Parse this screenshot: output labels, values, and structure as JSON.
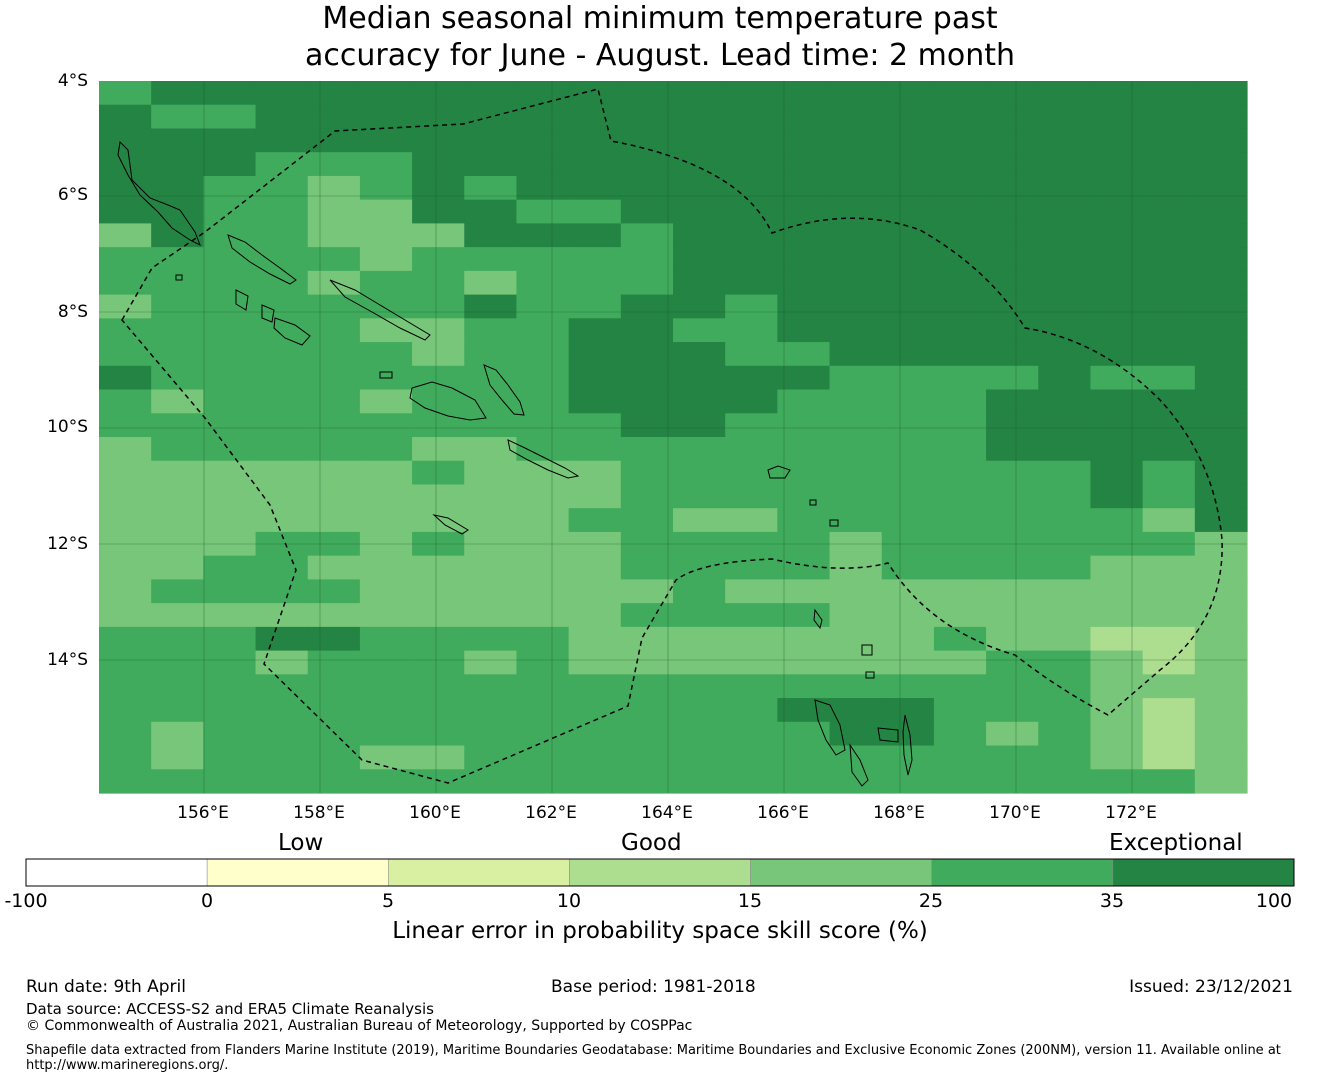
{
  "title_line1": "Median seasonal minimum temperature past",
  "title_line2": "accuracy for June - August. Lead time: 2 month",
  "lat_labels": [
    "4°S",
    "6°S",
    "8°S",
    "10°S",
    "12°S",
    "14°S"
  ],
  "lon_labels": [
    "156°E",
    "158°E",
    "160°E",
    "162°E",
    "164°E",
    "166°E",
    "168°E",
    "170°E",
    "172°E"
  ],
  "colorbar": {
    "category_labels": {
      "low": "Low",
      "good": "Good",
      "exceptional": "Exceptional"
    },
    "ticks": [
      "-100",
      "0",
      "5",
      "10",
      "15",
      "25",
      "35",
      "100"
    ],
    "colors": [
      "#ffffff",
      "#ffffcc",
      "#d9f0a3",
      "#addd8e",
      "#78c679",
      "#41ab5d",
      "#238443"
    ],
    "title": "Linear error in probability space skill score (%)"
  },
  "grid_rows": [
    "5666666666666666666666",
    "6556666666666666666666",
    "6666666666666666666666",
    "6665556666666666666666",
    "6655456566666666666666",
    "6655446655666666666666",
    "4655444666566666666666",
    "5555545555566666666666",
    "5555455455566666666666",
    "4555555655665666666666",
    "5555544556655666666666",
    "5555554556665566666666",
    "6555555556666655556556",
    "5455545556666555566666",
    "5555555555665555566666",
    "4555554455555555566666",
    "4444445444555555555656",
    "4444444444555555555656",
    "4444444445544555555546",
    "4445545444555545555554",
    "4455444444555545555444",
    "4555544444454444444444",
    "4444444444555544444444",
    "5556655554444444544334",
    "5554555454444444455434",
    "5555555555555555555444",
    "5555555555555666555434",
    "5455555555555566545434",
    "5455544555555555555434",
    "5555555555555555555554"
  ],
  "footer": {
    "run_date": "Run date: 9th April",
    "base_period": "Base period: 1981-2018",
    "issued": "Issued: 23/12/2021",
    "data_source": "Data source: ACCESS-S2 and ERA5 Climate Reanalysis",
    "copyright": "© Commonwealth of Australia 2021, Australian Bureau of Meteorology, Supported by COSPPac",
    "shapefile_line1": "Shapefile data extracted from Flanders Marine Institute (2019), Maritime Boundaries Geodatabase: Maritime Boundaries and Exclusive Economic Zones (200NM), version 11. Available online at",
    "shapefile_line2": "http://www.marineregions.org/."
  }
}
